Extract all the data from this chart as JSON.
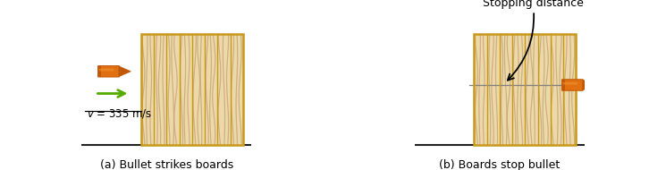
{
  "fig_width": 7.45,
  "fig_height": 1.9,
  "dpi": 100,
  "board_color_light": "#EDD9A8",
  "board_color_bg": "#E8D08A",
  "board_border": "#C8981A",
  "board_grain_color": "#C8A87A",
  "board_grain_color2": "#D4B882",
  "num_boards": 8,
  "panel_a_label": "(a) Bullet strikes boards",
  "panel_b_label": "(b) Boards stop bullet",
  "velocity_label": "v = 335 m/s",
  "stopping_label": "Stopping distance",
  "arrow_color": "#55AA00",
  "bullet_orange": "#E07010",
  "bullet_dark": "#C05808",
  "bullet_light": "#F09030",
  "background": "#ffffff",
  "ground_color": "#222222"
}
